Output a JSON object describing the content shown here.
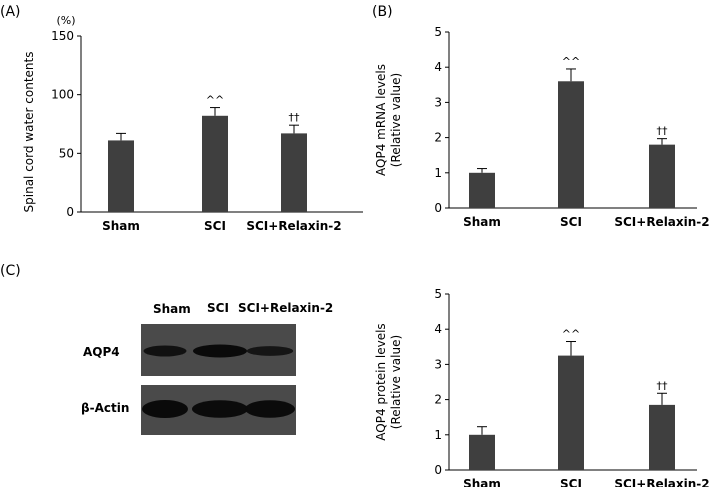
{
  "panels": {
    "a": "(A)",
    "b": "(B)",
    "c": "(C)"
  },
  "chart_data": [
    {
      "id": "A",
      "type": "bar",
      "categories": [
        "Sham",
        "SCI",
        "SCI+Relaxin-2"
      ],
      "values": [
        61,
        82,
        67
      ],
      "errors": [
        6,
        7,
        7
      ],
      "annotations": [
        "",
        "^^",
        "††"
      ],
      "ylim": [
        0,
        150
      ],
      "yticks": [
        0,
        50,
        100,
        150
      ],
      "unit_label": "(%)",
      "ylabel": "Spinal cord water contents",
      "xlabel": "",
      "title": ""
    },
    {
      "id": "B",
      "type": "bar",
      "categories": [
        "Sham",
        "SCI",
        "SCI+Relaxin-2"
      ],
      "values": [
        1.0,
        3.6,
        1.8
      ],
      "errors": [
        0.12,
        0.35,
        0.17
      ],
      "annotations": [
        "",
        "^^",
        "††"
      ],
      "ylim": [
        0,
        5
      ],
      "yticks": [
        0,
        1,
        2,
        3,
        4,
        5
      ],
      "ylabel": "AQP4 mRNA levels",
      "ylabel2": "(Relative value)",
      "xlabel": "",
      "title": ""
    },
    {
      "id": "C",
      "type": "bar",
      "categories": [
        "Sham",
        "SCI",
        "SCI+Relaxin-2"
      ],
      "values": [
        1.0,
        3.25,
        1.85
      ],
      "errors": [
        0.23,
        0.4,
        0.33
      ],
      "annotations": [
        "",
        "^^",
        "††"
      ],
      "ylim": [
        0,
        5
      ],
      "yticks": [
        0,
        1,
        2,
        3,
        4,
        5
      ],
      "ylabel": "AQP4 protein levels",
      "ylabel2": "(Relative value)",
      "xlabel": "",
      "title": ""
    }
  ],
  "blot": {
    "lanes": [
      "Sham",
      "SCI",
      "SCI+Relaxin-2"
    ],
    "rows": [
      "AQP4",
      "β-Actin"
    ],
    "aqp4_intensity": [
      0.75,
      1.0,
      0.6
    ],
    "actin_intensity": [
      1.0,
      0.95,
      0.95
    ]
  }
}
